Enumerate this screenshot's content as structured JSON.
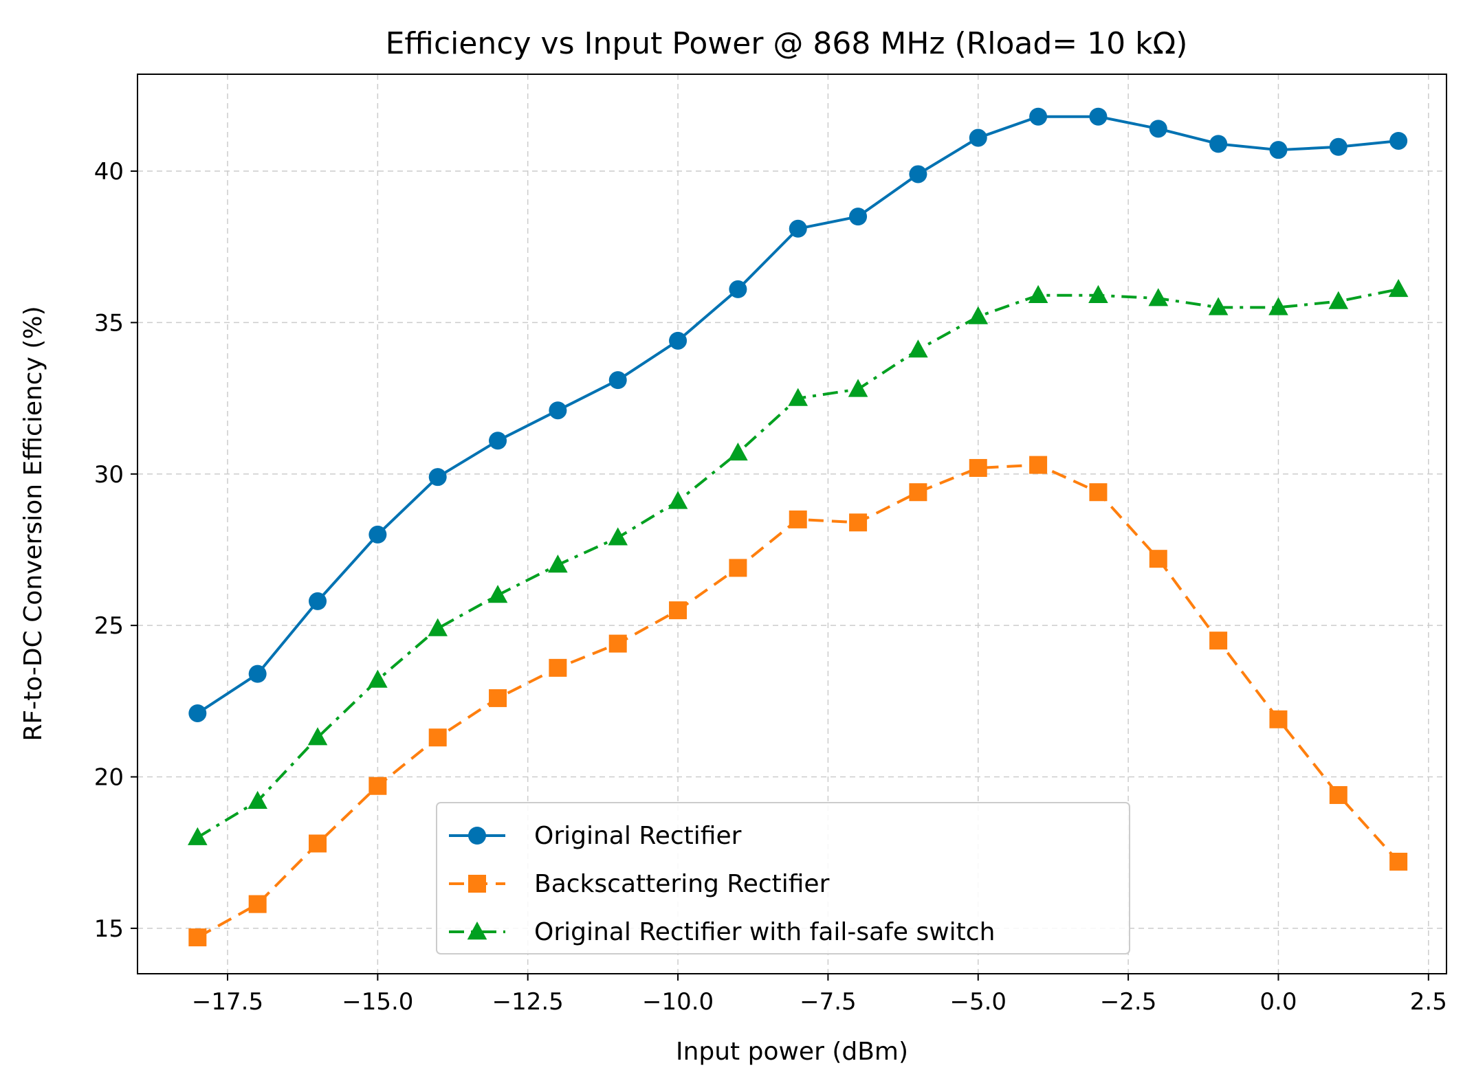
{
  "chart_data": {
    "type": "line",
    "title": "Efficiency vs Input Power @ 868 MHz (Rload= 10 kΩ)",
    "xlabel": "Input power (dBm)",
    "ylabel": "RF-to-DC Conversion Efficiency (%)",
    "xlim": [
      -19.0,
      2.8
    ],
    "ylim": [
      13.5,
      43.2
    ],
    "xticks": [
      -17.5,
      -15.0,
      -12.5,
      -10.0,
      -7.5,
      -5.0,
      -2.5,
      0.0,
      2.5
    ],
    "xtick_labels": [
      "−17.5",
      "−15.0",
      "−12.5",
      "−10.0",
      "−7.5",
      "−5.0",
      "−2.5",
      "0.0",
      "2.5"
    ],
    "yticks": [
      15,
      20,
      25,
      30,
      35,
      40
    ],
    "ytick_labels": [
      "15",
      "20",
      "25",
      "30",
      "35",
      "40"
    ],
    "grid": true,
    "legend_position": "lower-center",
    "x": [
      -18,
      -17,
      -16,
      -15,
      -14,
      -13,
      -12,
      -11,
      -10,
      -9,
      -8,
      -7,
      -6,
      -5,
      -4,
      -3,
      -2,
      -1,
      0,
      1,
      2
    ],
    "series": [
      {
        "name": "Original Rectifier",
        "color": "#0072b2",
        "marker": "circle",
        "linestyle": "solid",
        "values": [
          22.1,
          23.4,
          25.8,
          28.0,
          29.9,
          31.1,
          32.1,
          33.1,
          34.4,
          36.1,
          38.1,
          38.5,
          39.9,
          41.1,
          41.8,
          41.8,
          41.4,
          40.9,
          40.7,
          40.8,
          41.0
        ]
      },
      {
        "name": "Backscattering Rectifier",
        "color": "#ff7f0e",
        "marker": "square",
        "linestyle": "dashed",
        "values": [
          14.7,
          15.8,
          17.8,
          19.7,
          21.3,
          22.6,
          23.6,
          24.4,
          25.5,
          26.9,
          28.5,
          28.4,
          29.4,
          30.2,
          30.3,
          29.4,
          27.2,
          24.5,
          21.9,
          19.4,
          17.2
        ]
      },
      {
        "name": "Original Rectifier with fail-safe switch",
        "color": "#00a020",
        "marker": "triangle",
        "linestyle": "dashdot",
        "values": [
          18.0,
          19.2,
          21.3,
          23.2,
          24.9,
          26.0,
          27.0,
          27.9,
          29.1,
          30.7,
          32.5,
          32.8,
          34.1,
          35.2,
          35.9,
          35.9,
          35.8,
          35.5,
          35.5,
          35.7,
          36.1
        ]
      }
    ]
  }
}
